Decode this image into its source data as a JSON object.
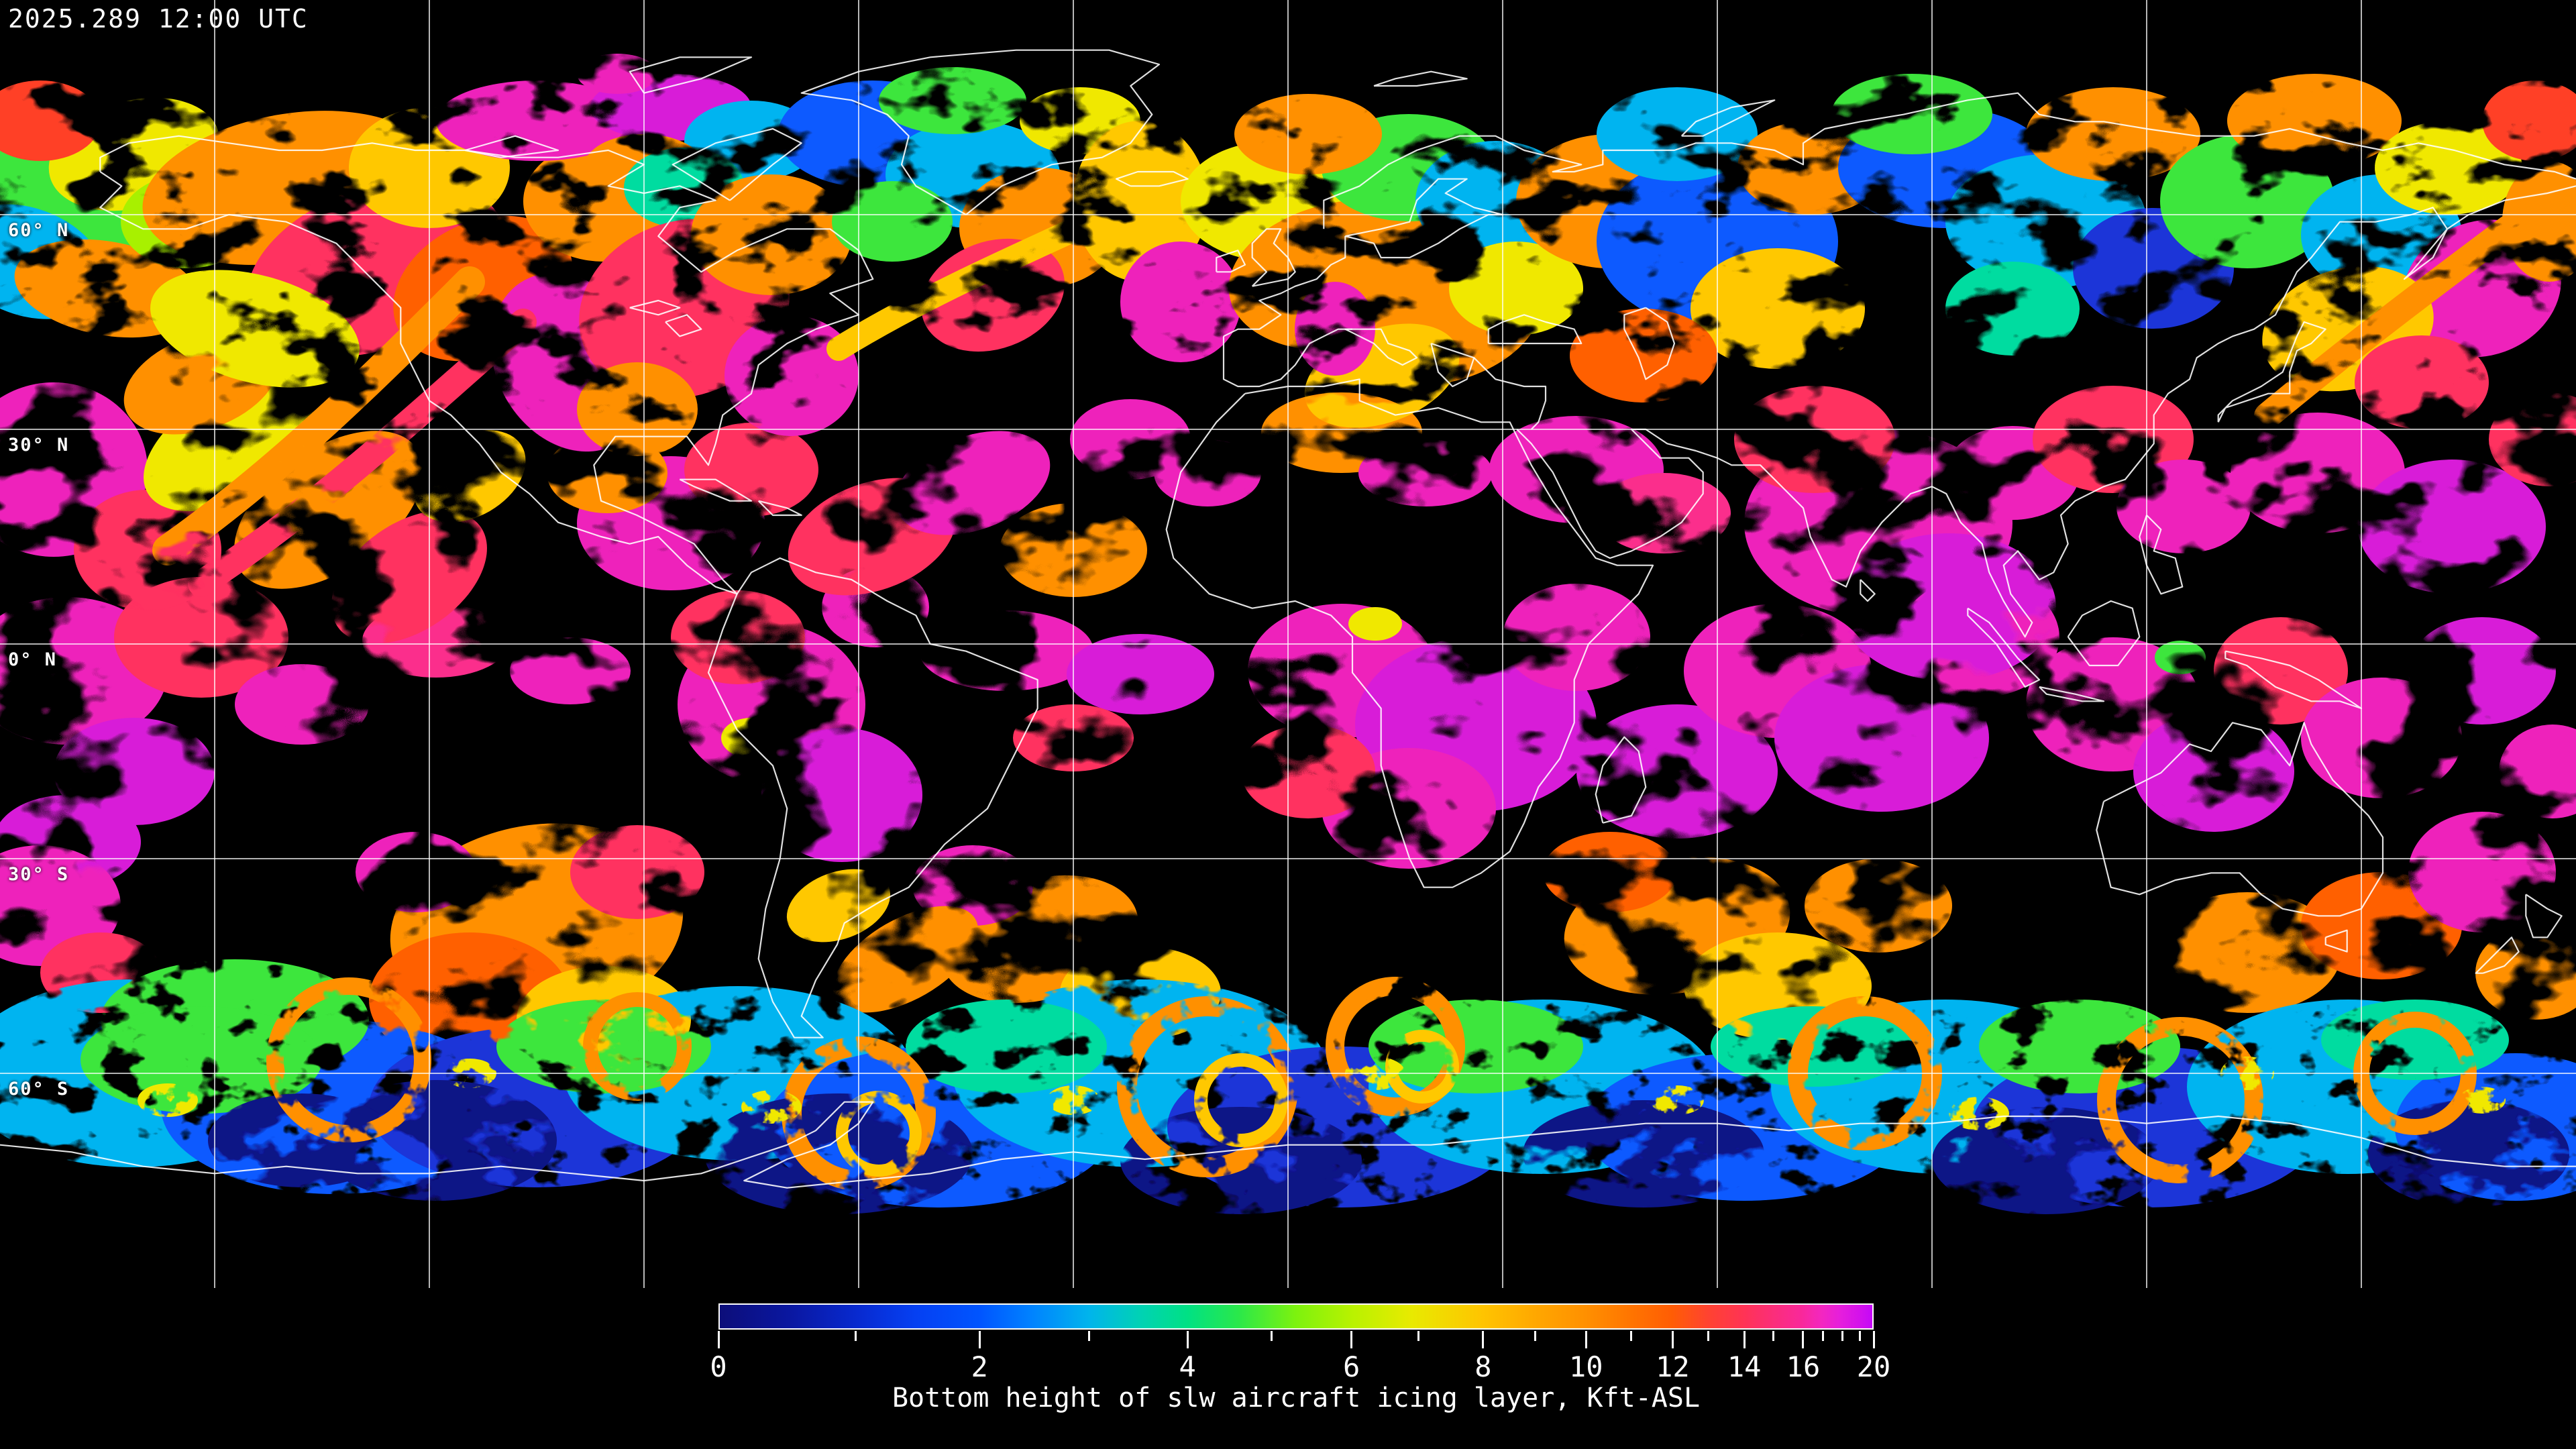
{
  "header": {
    "timestamp": "2025.289 12:00 UTC"
  },
  "map": {
    "background_color": "#000000",
    "coastline_color": "#ffffff",
    "graticule_color": "#ffffff",
    "latitude_labels": [
      {
        "id": "60n",
        "text": "60° N",
        "lat": 60
      },
      {
        "id": "30n",
        "text": "30° N",
        "lat": 30
      },
      {
        "id": "0n",
        "text": "0° N",
        "lat": 0
      },
      {
        "id": "30s",
        "text": "30° S",
        "lat": -30
      },
      {
        "id": "60s",
        "text": "60° S",
        "lat": -60
      }
    ],
    "grid": {
      "lon_lines_deg": [
        -150,
        -120,
        -90,
        -60,
        -30,
        0,
        30,
        60,
        90,
        120,
        150
      ],
      "lat_lines_deg": [
        60,
        30,
        0,
        -30,
        -60
      ]
    }
  },
  "colorbar": {
    "caption": "Bottom height of slw aircraft icing layer, Kft-ASL",
    "unit": "Kft-ASL",
    "min": 0,
    "max": 20,
    "tick_values": [
      0,
      1,
      2,
      3,
      4,
      5,
      6,
      7,
      8,
      9,
      10,
      11,
      12,
      13,
      14,
      15,
      16,
      17,
      18,
      19,
      20
    ],
    "tick_positions": [
      0.0,
      0.119,
      0.226,
      0.321,
      0.406,
      0.479,
      0.548,
      0.606,
      0.662,
      0.707,
      0.751,
      0.79,
      0.826,
      0.857,
      0.888,
      0.913,
      0.939,
      0.956,
      0.973,
      0.988,
      1.0
    ],
    "labeled_ticks": [
      0,
      2,
      4,
      6,
      8,
      10,
      12,
      14,
      16,
      20
    ],
    "gradient_stops": [
      [
        0.0,
        "#0c0e7a"
      ],
      [
        0.06,
        "#0a17a0"
      ],
      [
        0.12,
        "#082ad0"
      ],
      [
        0.17,
        "#0540f2"
      ],
      [
        0.226,
        "#0055ff"
      ],
      [
        0.27,
        "#0082ff"
      ],
      [
        0.32,
        "#00b4ec"
      ],
      [
        0.365,
        "#00d2b4"
      ],
      [
        0.406,
        "#00e184"
      ],
      [
        0.45,
        "#2ae84a"
      ],
      [
        0.5,
        "#7df20e"
      ],
      [
        0.548,
        "#b8f200"
      ],
      [
        0.6,
        "#e8ea00"
      ],
      [
        0.662,
        "#ffc400"
      ],
      [
        0.71,
        "#ffa600"
      ],
      [
        0.751,
        "#ff9000"
      ],
      [
        0.79,
        "#ff7500"
      ],
      [
        0.826,
        "#ff5d04"
      ],
      [
        0.857,
        "#ff4330"
      ],
      [
        0.888,
        "#ff3354"
      ],
      [
        0.913,
        "#fb2e78"
      ],
      [
        0.939,
        "#f9289b"
      ],
      [
        0.956,
        "#f327c0"
      ],
      [
        0.973,
        "#e51edd"
      ],
      [
        0.988,
        "#d512ea"
      ],
      [
        1.0,
        "#c408f8"
      ]
    ]
  }
}
